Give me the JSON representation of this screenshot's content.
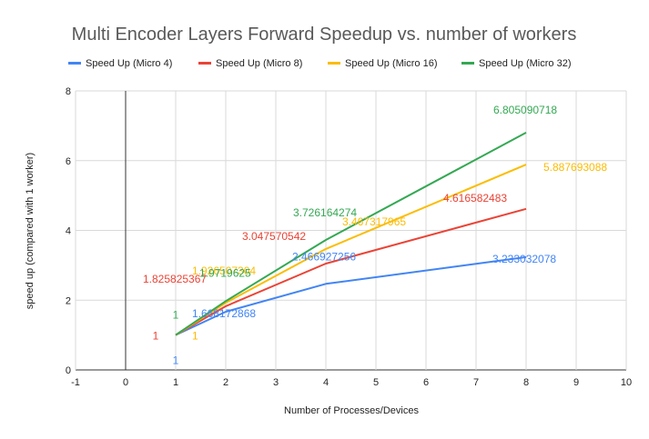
{
  "chart_data": {
    "type": "line",
    "title": "Multi Encoder Layers Forward Speedup vs. number of workers",
    "xlabel": "Number of Processes/Devices",
    "ylabel": "speed up (compared with 1 worker)",
    "xlim": [
      -1,
      10
    ],
    "ylim": [
      0,
      8
    ],
    "x_ticks": [
      "-1",
      "0",
      "1",
      "2",
      "3",
      "4",
      "5",
      "6",
      "7",
      "8",
      "9",
      "10"
    ],
    "y_ticks": [
      "0",
      "2",
      "4",
      "6",
      "8"
    ],
    "grid": true,
    "legend_position": "top",
    "series": [
      {
        "name": "Speed Up (Micro 4)",
        "color": "#4285F4",
        "x": [
          1,
          2,
          4,
          8
        ],
        "y": [
          1,
          1.668172868,
          2.466927256,
          3.233032078
        ],
        "labels": [
          "1",
          "1.668172868",
          "2.466927256",
          "3.233032078"
        ]
      },
      {
        "name": "Speed Up (Micro 8)",
        "color": "#EA4335",
        "x": [
          1,
          2,
          4,
          8
        ],
        "y": [
          1,
          1.825825367,
          3.047570542,
          4.616582483
        ],
        "labels": [
          "1",
          "1.825825367",
          "3.047570542",
          "4.616582483"
        ]
      },
      {
        "name": "Speed Up (Micro 16)",
        "color": "#FBBC04",
        "x": [
          1,
          2,
          4,
          8
        ],
        "y": [
          1,
          1.926507304,
          3.467317965,
          5.887693088
        ],
        "labels": [
          "1",
          "1.926507304",
          "3.467317965",
          "5.887693088"
        ]
      },
      {
        "name": "Speed Up (Micro 32)",
        "color": "#34A853",
        "x": [
          1,
          2,
          4,
          8
        ],
        "y": [
          1,
          1.9719625,
          3.726164274,
          6.805090718
        ],
        "labels": [
          "1",
          "1.9719625",
          "3.726164274",
          "6.805090718"
        ]
      }
    ]
  }
}
